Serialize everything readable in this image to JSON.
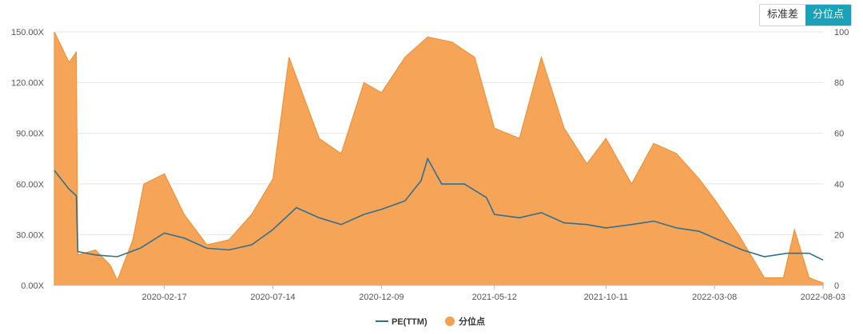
{
  "toggle": {
    "std_label": "标准差",
    "pct_label": "分位点",
    "active": "pct"
  },
  "chart_data": {
    "type": "area",
    "title": "",
    "xlabel": "",
    "ylabel": "",
    "x_ticks": [
      "2020-02-17",
      "2020-07-14",
      "2020-12-09",
      "2021-05-12",
      "2021-10-11",
      "2022-03-08",
      "2022-08-03"
    ],
    "y_left": {
      "ticks": [
        "0.00X",
        "30.00X",
        "60.00X",
        "90.00X",
        "120.00X",
        "150.00X"
      ],
      "range": [
        0,
        150
      ]
    },
    "y_right": {
      "ticks": [
        "0",
        "20",
        "40",
        "60",
        "80",
        "100"
      ],
      "range": [
        0,
        100
      ]
    },
    "grid": true,
    "legend_position": "bottom",
    "series": [
      {
        "name": "PE(TTM)",
        "axis": "left",
        "color": "#2f6f8f",
        "type": "line",
        "x": [
          "2019-09-20",
          "2019-10-10",
          "2019-10-20",
          "2019-10-22",
          "2019-11-15",
          "2019-12-15",
          "2020-01-15",
          "2020-02-17",
          "2020-03-15",
          "2020-04-15",
          "2020-05-15",
          "2020-06-15",
          "2020-07-14",
          "2020-08-15",
          "2020-09-15",
          "2020-10-15",
          "2020-11-15",
          "2020-12-09",
          "2021-01-10",
          "2021-02-01",
          "2021-02-10",
          "2021-03-01",
          "2021-04-01",
          "2021-05-01",
          "2021-05-12",
          "2021-06-15",
          "2021-07-15",
          "2021-08-15",
          "2021-09-15",
          "2021-10-11",
          "2021-11-15",
          "2021-12-15",
          "2022-01-15",
          "2022-02-15",
          "2022-03-08",
          "2022-04-15",
          "2022-05-15",
          "2022-06-15",
          "2022-07-15",
          "2022-08-03"
        ],
        "values": [
          68,
          57,
          53,
          20,
          18,
          17,
          22,
          31,
          28,
          22,
          21,
          24,
          33,
          46,
          40,
          36,
          42,
          45,
          50,
          62,
          75,
          60,
          60,
          52,
          42,
          40,
          43,
          37,
          36,
          34,
          36,
          38,
          34,
          32,
          28,
          21,
          17,
          19,
          19,
          15
        ]
      },
      {
        "name": "分位点",
        "axis": "right",
        "color": "#f5a04f",
        "type": "area",
        "x": [
          "2019-09-20",
          "2019-10-10",
          "2019-10-20",
          "2019-10-22",
          "2019-11-15",
          "2019-12-05",
          "2019-12-15",
          "2020-01-05",
          "2020-01-20",
          "2020-02-17",
          "2020-03-15",
          "2020-04-15",
          "2020-05-15",
          "2020-06-15",
          "2020-07-14",
          "2020-08-05",
          "2020-09-15",
          "2020-10-15",
          "2020-11-15",
          "2020-12-09",
          "2021-01-10",
          "2021-02-10",
          "2021-03-15",
          "2021-04-15",
          "2021-05-12",
          "2021-06-15",
          "2021-07-15",
          "2021-08-15",
          "2021-09-15",
          "2021-10-11",
          "2021-11-15",
          "2021-12-15",
          "2022-01-15",
          "2022-02-15",
          "2022-03-08",
          "2022-04-10",
          "2022-05-15",
          "2022-06-10",
          "2022-06-25",
          "2022-07-15",
          "2022-08-03"
        ],
        "values": [
          100,
          88,
          92,
          12,
          14,
          8,
          2,
          18,
          40,
          44,
          28,
          16,
          18,
          28,
          42,
          90,
          58,
          52,
          80,
          76,
          90,
          98,
          96,
          90,
          62,
          58,
          90,
          62,
          48,
          58,
          40,
          56,
          52,
          42,
          34,
          20,
          3,
          3,
          22,
          3,
          1
        ]
      }
    ]
  }
}
